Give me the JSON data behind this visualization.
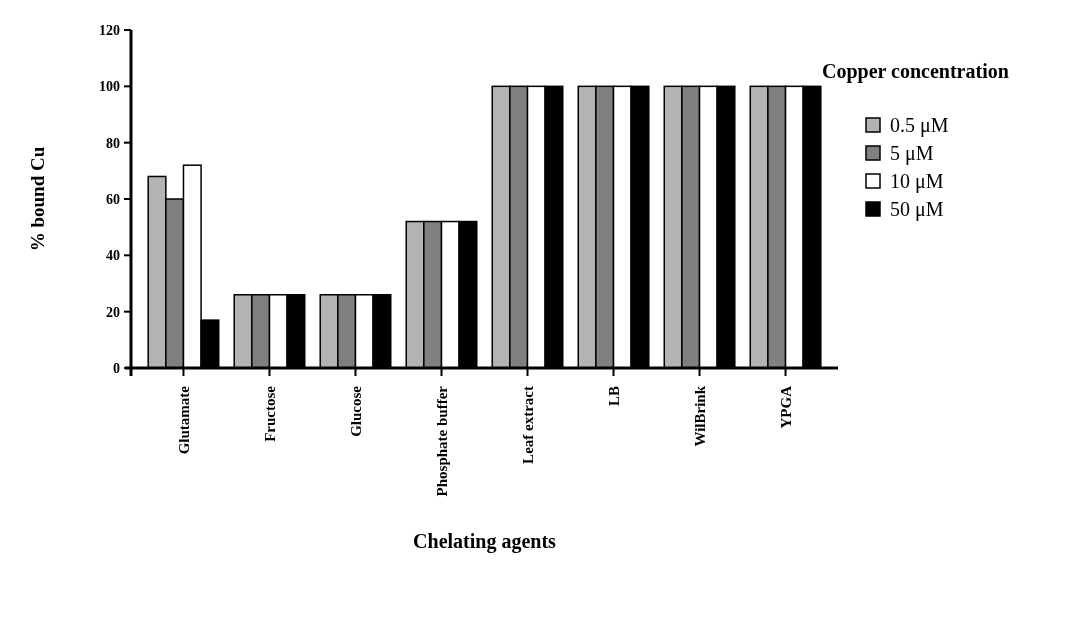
{
  "chart_data": {
    "type": "bar",
    "xlabel": "Chelating agents",
    "ylabel": "% bound Cu",
    "legend_title": "Copper concentration",
    "legend": "right",
    "categories": [
      "Glutamate",
      "Fructose",
      "Glucose",
      "Phosphate buffer",
      "Leaf extract",
      "LB",
      "WilBrink",
      "YPGA"
    ],
    "series": [
      {
        "name": "0.5 μM",
        "color": "#b3b3b3",
        "values": [
          68,
          26,
          26,
          52,
          100,
          100,
          100,
          100
        ]
      },
      {
        "name": "5 μM",
        "color": "#808080",
        "values": [
          60,
          26,
          26,
          52,
          100,
          100,
          100,
          100
        ]
      },
      {
        "name": "10 μM",
        "color": "#ffffff",
        "values": [
          72,
          26,
          26,
          52,
          100,
          100,
          100,
          100
        ]
      },
      {
        "name": "50 μM",
        "color": "#000000",
        "values": [
          17,
          26,
          26,
          52,
          100,
          100,
          100,
          100
        ]
      }
    ],
    "ylim": [
      0,
      120
    ],
    "yticks": [
      0,
      20,
      40,
      60,
      80,
      100,
      120
    ],
    "grid": false
  }
}
